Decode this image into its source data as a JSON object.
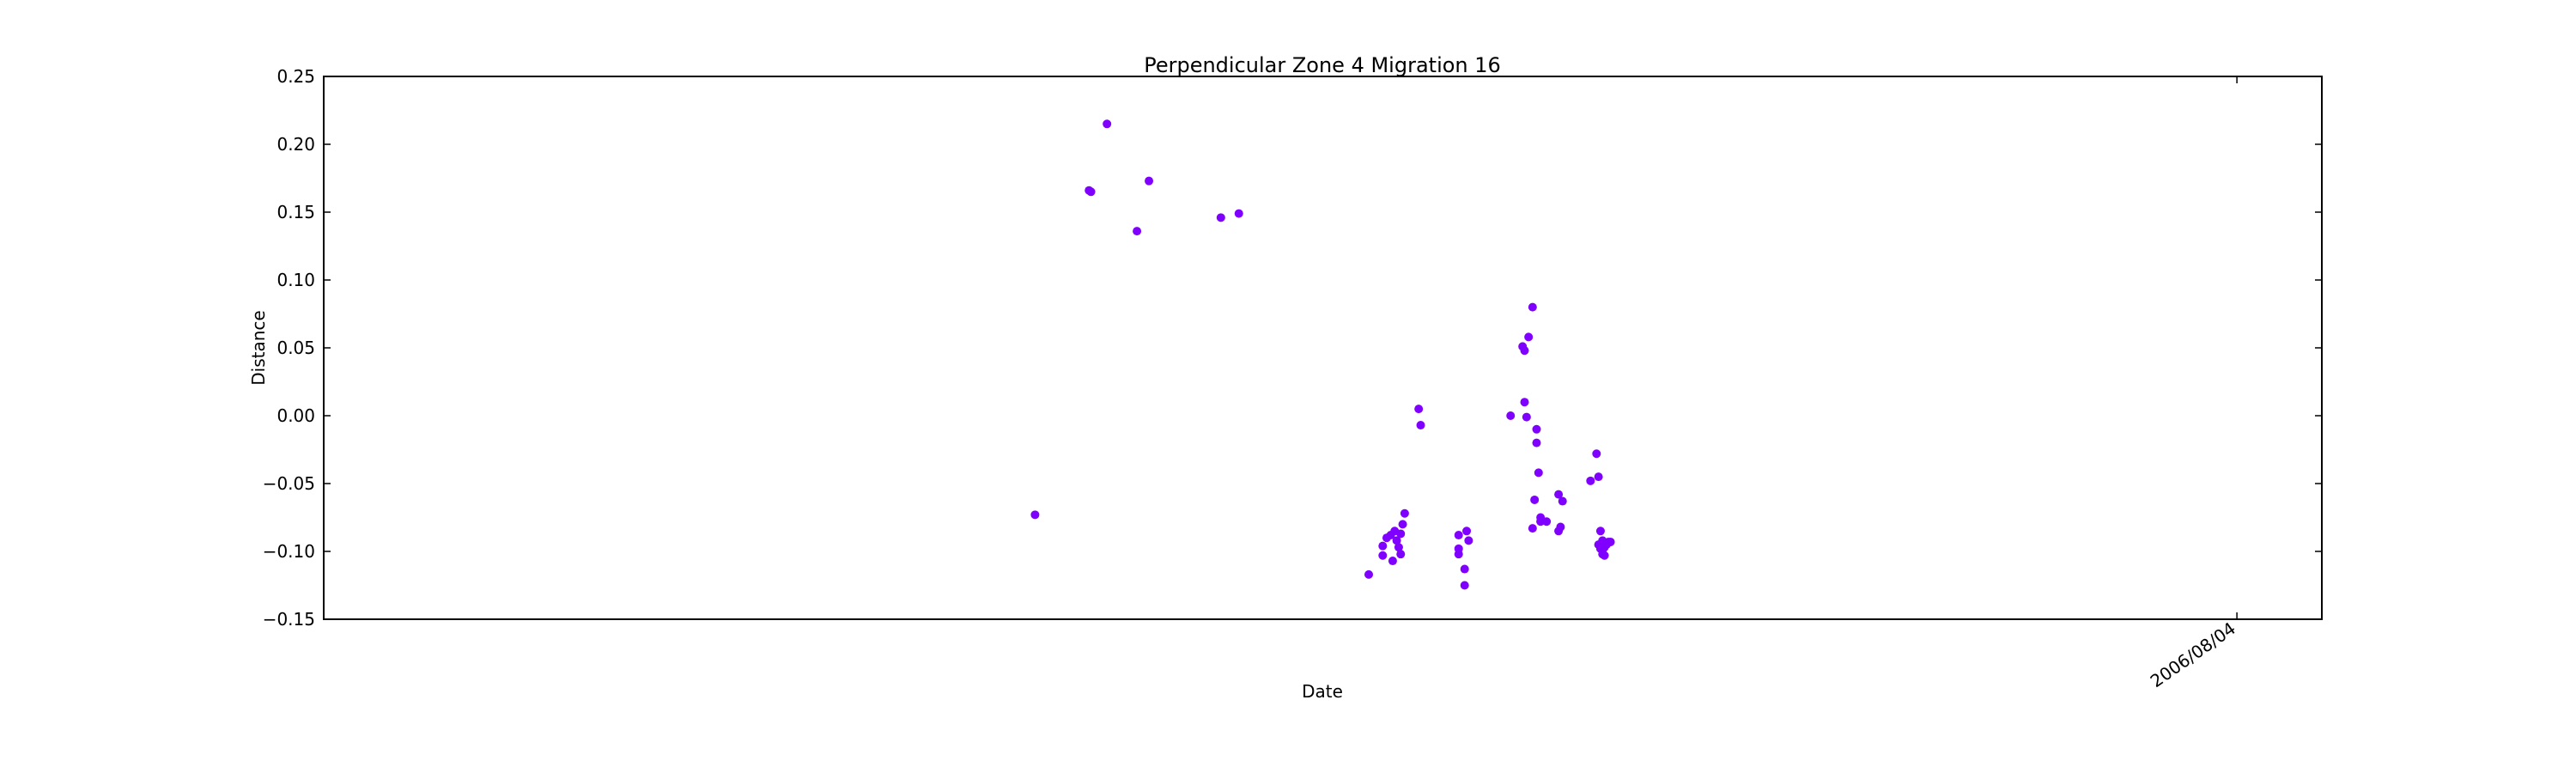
{
  "chart_data": {
    "type": "scatter",
    "title": "Perpendicular Zone 4 Migration 16",
    "xlabel": "Date",
    "ylabel": "Distance",
    "ylim": [
      -0.15,
      0.25
    ],
    "yticks": [
      "0.25",
      "0.20",
      "0.15",
      "0.10",
      "0.05",
      "0.00",
      "−0.05",
      "−0.10",
      "−0.15"
    ],
    "xticks": [
      "2006/08/04"
    ],
    "grid": false,
    "marker_color": "#7f00ff",
    "series": [
      {
        "points": [
          [
            0.356,
            -0.073
          ],
          [
            0.383,
            0.166
          ],
          [
            0.384,
            0.165
          ],
          [
            0.392,
            0.215
          ],
          [
            0.407,
            0.136
          ],
          [
            0.413,
            0.173
          ],
          [
            0.449,
            0.146
          ],
          [
            0.458,
            0.149
          ],
          [
            0.523,
            -0.117
          ],
          [
            0.53,
            -0.096
          ],
          [
            0.53,
            -0.103
          ],
          [
            0.532,
            -0.09
          ],
          [
            0.534,
            -0.088
          ],
          [
            0.535,
            -0.107
          ],
          [
            0.536,
            -0.085
          ],
          [
            0.537,
            -0.092
          ],
          [
            0.538,
            -0.097
          ],
          [
            0.539,
            -0.102
          ],
          [
            0.539,
            -0.087
          ],
          [
            0.54,
            -0.08
          ],
          [
            0.541,
            -0.072
          ],
          [
            0.548,
            0.005
          ],
          [
            0.549,
            -0.007
          ],
          [
            0.568,
            -0.088
          ],
          [
            0.568,
            -0.098
          ],
          [
            0.568,
            -0.102
          ],
          [
            0.571,
            -0.113
          ],
          [
            0.571,
            -0.125
          ],
          [
            0.572,
            -0.085
          ],
          [
            0.573,
            -0.092
          ],
          [
            0.594,
            0.0
          ],
          [
            0.6,
            0.051
          ],
          [
            0.601,
            0.048
          ],
          [
            0.601,
            0.01
          ],
          [
            0.602,
            -0.001
          ],
          [
            0.603,
            0.058
          ],
          [
            0.605,
            -0.083
          ],
          [
            0.605,
            0.08
          ],
          [
            0.606,
            -0.062
          ],
          [
            0.607,
            -0.01
          ],
          [
            0.607,
            -0.02
          ],
          [
            0.608,
            -0.042
          ],
          [
            0.609,
            -0.075
          ],
          [
            0.609,
            -0.078
          ],
          [
            0.612,
            -0.078
          ],
          [
            0.618,
            -0.058
          ],
          [
            0.618,
            -0.085
          ],
          [
            0.619,
            -0.082
          ],
          [
            0.62,
            -0.063
          ],
          [
            0.634,
            -0.048
          ],
          [
            0.637,
            -0.028
          ],
          [
            0.638,
            -0.045
          ],
          [
            0.639,
            -0.085
          ],
          [
            0.638,
            -0.095
          ],
          [
            0.639,
            -0.098
          ],
          [
            0.64,
            -0.102
          ],
          [
            0.64,
            -0.092
          ],
          [
            0.641,
            -0.097
          ],
          [
            0.642,
            -0.095
          ],
          [
            0.643,
            -0.093
          ],
          [
            0.644,
            -0.093
          ],
          [
            0.64,
            -0.099
          ],
          [
            0.641,
            -0.103
          ]
        ]
      }
    ]
  }
}
